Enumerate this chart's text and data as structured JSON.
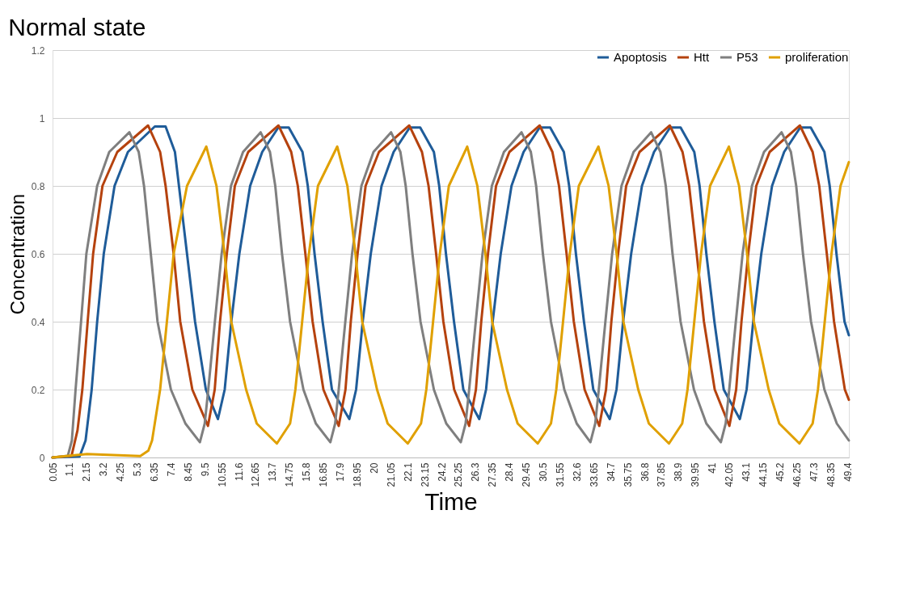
{
  "chart_data": {
    "type": "line",
    "title": "Normal state",
    "xlabel": "Time",
    "ylabel": "Concentration",
    "xlim": [
      0.05,
      49.5
    ],
    "ylim": [
      0,
      1.2
    ],
    "xticks": [
      0.05,
      1.1,
      2.15,
      3.2,
      4.25,
      5.3,
      6.35,
      7.4,
      8.45,
      9.5,
      10.55,
      11.6,
      12.65,
      13.7,
      14.75,
      15.8,
      16.85,
      17.9,
      18.95,
      20,
      21.05,
      22.1,
      23.15,
      24.2,
      25.25,
      26.3,
      27.35,
      28.4,
      29.45,
      30.5,
      31.55,
      32.6,
      33.65,
      34.7,
      35.75,
      36.8,
      37.85,
      38.9,
      39.95,
      41,
      42.05,
      43.1,
      44.15,
      45.2,
      46.25,
      47.3,
      48.35,
      49.4
    ],
    "yticks": [
      0,
      0.2,
      0.4,
      0.6,
      0.8,
      1,
      1.2
    ],
    "grid": "y",
    "legend": "top right",
    "line_style": "solid",
    "series": [
      {
        "name": "Apoptosis",
        "color": "#1f5c99",
        "x": [
          0.05,
          1.73,
          2.1,
          2.48,
          2.82,
          3.23,
          3.9,
          4.73,
          6.4,
          7.07,
          7.65,
          7.9,
          8.4,
          8.9,
          9.57,
          10.32,
          10.74,
          11.15,
          11.65,
          12.32,
          13.07,
          14.07,
          14.72,
          15.57,
          15.9,
          16.32,
          16.82,
          17.4,
          18.48,
          18.9,
          19.31,
          19.81,
          20.48,
          21.23,
          22.23,
          22.88,
          23.73,
          24.06,
          24.48,
          24.98,
          25.56,
          26.55,
          26.97,
          27.38,
          27.88,
          28.55,
          29.3,
          30.3,
          30.95,
          31.8,
          32.13,
          32.55,
          33.05,
          33.63,
          34.65,
          35.07,
          35.48,
          35.98,
          36.65,
          37.4,
          38.4,
          39.05,
          39.9,
          40.23,
          40.65,
          41.15,
          41.73,
          42.73,
          43.15,
          43.56,
          44.06,
          44.73,
          45.48,
          46.48,
          47.13,
          47.98,
          48.31,
          48.73,
          49.23,
          49.5
        ],
        "values": [
          0,
          0.003,
          0.05,
          0.2,
          0.4,
          0.6,
          0.8,
          0.9,
          0.975,
          0.975,
          0.9,
          0.8,
          0.6,
          0.4,
          0.2,
          0.113,
          0.2,
          0.4,
          0.6,
          0.8,
          0.9,
          0.972,
          0.972,
          0.9,
          0.8,
          0.6,
          0.4,
          0.2,
          0.113,
          0.2,
          0.4,
          0.6,
          0.8,
          0.9,
          0.972,
          0.972,
          0.9,
          0.8,
          0.6,
          0.4,
          0.2,
          0.113,
          0.2,
          0.4,
          0.6,
          0.8,
          0.9,
          0.972,
          0.972,
          0.9,
          0.8,
          0.6,
          0.4,
          0.2,
          0.113,
          0.2,
          0.4,
          0.6,
          0.8,
          0.9,
          0.972,
          0.972,
          0.9,
          0.8,
          0.6,
          0.4,
          0.2,
          0.113,
          0.2,
          0.4,
          0.6,
          0.8,
          0.9,
          0.972,
          0.972,
          0.9,
          0.8,
          0.6,
          0.4,
          0.36
        ]
      },
      {
        "name": "Htt",
        "color": "#b5420e",
        "x": [
          0.05,
          1.23,
          1.6,
          1.9,
          2.23,
          2.57,
          3.15,
          4.07,
          5.98,
          6.73,
          7.07,
          7.57,
          7.98,
          8.73,
          9.7,
          10.12,
          10.45,
          10.87,
          11.37,
          12.2,
          14.08,
          14.87,
          15.28,
          15.75,
          16.2,
          16.87,
          17.82,
          18.24,
          18.57,
          18.99,
          19.49,
          20.32,
          22.2,
          22.99,
          23.4,
          23.87,
          24.32,
          24.99,
          25.92,
          26.34,
          26.67,
          27.09,
          27.59,
          28.42,
          30.3,
          31.09,
          31.5,
          31.97,
          32.42,
          33.09,
          34.0,
          34.42,
          34.75,
          35.17,
          35.67,
          36.5,
          38.38,
          39.17,
          39.58,
          40.05,
          40.5,
          41.17,
          42.08,
          42.5,
          42.83,
          43.25,
          43.75,
          44.58,
          46.46,
          47.25,
          47.66,
          48.13,
          48.58,
          49.25,
          49.5
        ],
        "values": [
          0,
          0.005,
          0.08,
          0.2,
          0.4,
          0.6,
          0.8,
          0.9,
          0.978,
          0.9,
          0.8,
          0.6,
          0.4,
          0.2,
          0.093,
          0.2,
          0.4,
          0.6,
          0.8,
          0.9,
          0.978,
          0.9,
          0.8,
          0.6,
          0.4,
          0.2,
          0.093,
          0.2,
          0.4,
          0.6,
          0.8,
          0.9,
          0.978,
          0.9,
          0.8,
          0.6,
          0.4,
          0.2,
          0.093,
          0.2,
          0.4,
          0.6,
          0.8,
          0.9,
          0.978,
          0.9,
          0.8,
          0.6,
          0.4,
          0.2,
          0.093,
          0.2,
          0.4,
          0.6,
          0.8,
          0.9,
          0.978,
          0.9,
          0.8,
          0.6,
          0.4,
          0.2,
          0.093,
          0.2,
          0.4,
          0.6,
          0.8,
          0.9,
          0.978,
          0.9,
          0.8,
          0.6,
          0.4,
          0.2,
          0.17
        ]
      },
      {
        "name": "P53",
        "color": "#7f7f7f",
        "x": [
          0.05,
          1.0,
          1.25,
          1.48,
          1.82,
          2.15,
          2.82,
          3.57,
          4.82,
          5.4,
          5.73,
          6.15,
          6.57,
          7.4,
          8.3,
          9.2,
          9.5,
          9.72,
          10.13,
          10.55,
          11.13,
          11.88,
          12.97,
          13.55,
          13.88,
          14.3,
          14.8,
          15.63,
          16.4,
          17.3,
          17.6,
          17.82,
          18.23,
          18.65,
          19.23,
          19.98,
          21.07,
          21.65,
          21.98,
          22.4,
          22.9,
          23.73,
          24.5,
          25.4,
          25.7,
          25.92,
          26.33,
          26.75,
          27.33,
          28.08,
          29.17,
          29.75,
          30.08,
          30.5,
          31.0,
          31.83,
          32.6,
          33.45,
          33.75,
          33.97,
          34.38,
          34.8,
          35.38,
          36.13,
          37.22,
          37.8,
          38.13,
          38.55,
          39.05,
          39.88,
          40.65,
          41.55,
          41.85,
          42.07,
          42.48,
          42.9,
          43.48,
          44.23,
          45.32,
          45.9,
          46.23,
          46.65,
          47.15,
          47.98,
          48.75,
          49.5
        ],
        "values": [
          0,
          0.005,
          0.05,
          0.2,
          0.4,
          0.6,
          0.8,
          0.9,
          0.958,
          0.9,
          0.8,
          0.6,
          0.4,
          0.2,
          0.1,
          0.045,
          0.1,
          0.2,
          0.4,
          0.6,
          0.8,
          0.9,
          0.958,
          0.9,
          0.8,
          0.6,
          0.4,
          0.2,
          0.1,
          0.045,
          0.1,
          0.2,
          0.4,
          0.6,
          0.8,
          0.9,
          0.958,
          0.9,
          0.8,
          0.6,
          0.4,
          0.2,
          0.1,
          0.045,
          0.1,
          0.2,
          0.4,
          0.6,
          0.8,
          0.9,
          0.958,
          0.9,
          0.8,
          0.6,
          0.4,
          0.2,
          0.1,
          0.045,
          0.1,
          0.2,
          0.4,
          0.6,
          0.8,
          0.9,
          0.958,
          0.9,
          0.8,
          0.6,
          0.4,
          0.2,
          0.1,
          0.045,
          0.1,
          0.2,
          0.4,
          0.6,
          0.8,
          0.9,
          0.958,
          0.9,
          0.8,
          0.6,
          0.4,
          0.2,
          0.1,
          0.05
        ]
      },
      {
        "name": "proliferation",
        "color": "#e0a000",
        "x": [
          0.05,
          1.0,
          2.2,
          3.5,
          5.5,
          6.0,
          6.23,
          6.73,
          7.15,
          7.57,
          8.4,
          9.6,
          10.23,
          10.73,
          11.15,
          12.07,
          12.73,
          13.98,
          14.8,
          15.13,
          15.55,
          15.97,
          16.53,
          17.73,
          18.36,
          18.86,
          19.28,
          20.2,
          20.86,
          22.11,
          22.93,
          23.26,
          23.68,
          24.1,
          24.66,
          25.8,
          26.43,
          26.93,
          27.35,
          28.27,
          28.93,
          30.18,
          31.0,
          31.33,
          31.75,
          32.17,
          32.73,
          33.95,
          34.58,
          35.08,
          35.5,
          36.42,
          37.08,
          38.33,
          39.15,
          39.48,
          39.9,
          40.32,
          40.88,
          42.05,
          42.68,
          43.18,
          43.6,
          44.52,
          45.18,
          46.43,
          47.25,
          47.58,
          48.0,
          48.42,
          48.98,
          49.5
        ],
        "values": [
          0,
          0.005,
          0.01,
          0.008,
          0.004,
          0.02,
          0.05,
          0.2,
          0.4,
          0.6,
          0.8,
          0.916,
          0.8,
          0.6,
          0.4,
          0.2,
          0.1,
          0.041,
          0.1,
          0.2,
          0.4,
          0.6,
          0.8,
          0.916,
          0.8,
          0.6,
          0.4,
          0.2,
          0.1,
          0.041,
          0.1,
          0.2,
          0.4,
          0.6,
          0.8,
          0.916,
          0.8,
          0.6,
          0.4,
          0.2,
          0.1,
          0.041,
          0.1,
          0.2,
          0.4,
          0.6,
          0.8,
          0.916,
          0.8,
          0.6,
          0.4,
          0.2,
          0.1,
          0.041,
          0.1,
          0.2,
          0.4,
          0.6,
          0.8,
          0.916,
          0.8,
          0.6,
          0.4,
          0.2,
          0.1,
          0.041,
          0.1,
          0.2,
          0.4,
          0.6,
          0.8,
          0.87
        ]
      }
    ]
  }
}
